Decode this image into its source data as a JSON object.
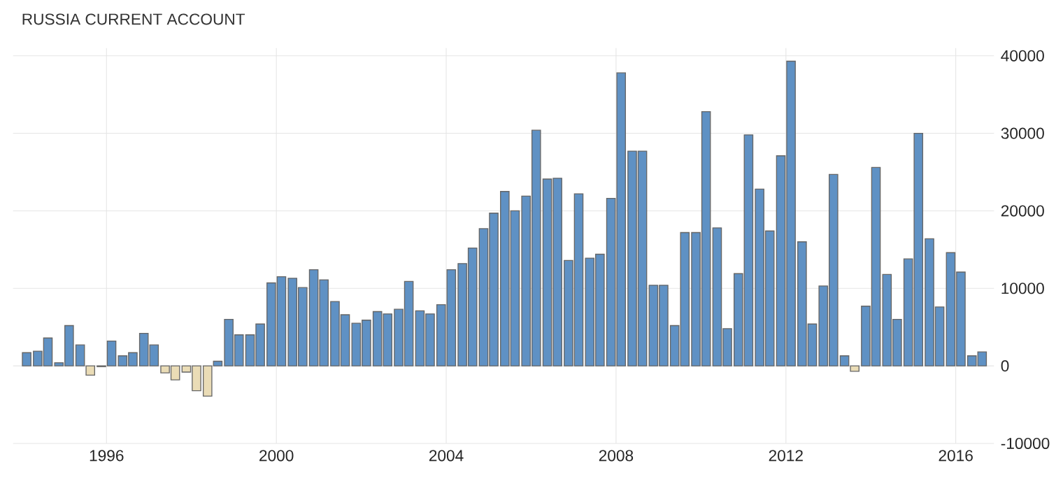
{
  "chart_data": {
    "type": "bar",
    "title": "RUSSIA CURRENT ACCOUNT",
    "x": [
      1994.12,
      1994.38,
      1994.62,
      1994.88,
      1995.12,
      1995.38,
      1995.62,
      1995.88,
      1996.12,
      1996.38,
      1996.62,
      1996.88,
      1997.12,
      1997.38,
      1997.62,
      1997.88,
      1998.12,
      1998.38,
      1998.62,
      1998.88,
      1999.12,
      1999.38,
      1999.62,
      1999.88,
      2000.12,
      2000.38,
      2000.62,
      2000.88,
      2001.12,
      2001.38,
      2001.62,
      2001.88,
      2002.12,
      2002.38,
      2002.62,
      2002.88,
      2003.12,
      2003.38,
      2003.62,
      2003.88,
      2004.12,
      2004.38,
      2004.62,
      2004.88,
      2005.12,
      2005.38,
      2005.62,
      2005.88,
      2006.12,
      2006.38,
      2006.62,
      2006.88,
      2007.12,
      2007.38,
      2007.62,
      2007.88,
      2008.12,
      2008.38,
      2008.62,
      2008.88,
      2009.12,
      2009.38,
      2009.62,
      2009.88,
      2010.12,
      2010.38,
      2010.62,
      2010.88,
      2011.12,
      2011.38,
      2011.62,
      2011.88,
      2012.12,
      2012.38,
      2012.62,
      2012.88,
      2013.12,
      2013.38,
      2013.62,
      2013.88,
      2014.12,
      2014.38,
      2014.62,
      2014.88,
      2015.12,
      2015.38,
      2015.62,
      2015.88,
      2016.12,
      2016.38,
      2016.62
    ],
    "values": [
      1700,
      1900,
      3600,
      400,
      5200,
      2700,
      -1200,
      -100,
      3200,
      1300,
      1700,
      4200,
      2700,
      -900,
      -1800,
      -800,
      -3200,
      -3900,
      600,
      6000,
      4000,
      4000,
      5400,
      10700,
      11500,
      11300,
      10100,
      12400,
      11100,
      8300,
      6600,
      5500,
      5900,
      7000,
      6700,
      7300,
      10900,
      7100,
      6700,
      7900,
      12400,
      13200,
      15200,
      17700,
      19700,
      22500,
      20000,
      21900,
      30400,
      24100,
      24200,
      13600,
      22200,
      13900,
      14400,
      21600,
      37800,
      27700,
      27700,
      10400,
      10400,
      5200,
      17200,
      17200,
      32800,
      17800,
      4800,
      11900,
      29800,
      22800,
      17400,
      27100,
      39300,
      16000,
      5400,
      10300,
      24700,
      1300,
      -700,
      7700,
      25600,
      11800,
      6000,
      13800,
      30000,
      16400,
      7600,
      14600,
      12100,
      1300,
      1800
    ],
    "colors": [
      "#5f91c4",
      "#5f91c4",
      "#5f91c4",
      "#5f91c4",
      "#5f91c4",
      "#5f91c4",
      "#eadcb6",
      "#eadcb6",
      "#5f91c4",
      "#5f91c4",
      "#5f91c4",
      "#5f91c4",
      "#5f91c4",
      "#eadcb6",
      "#eadcb6",
      "#eadcb6",
      "#eadcb6",
      "#eadcb6",
      "#5f91c4",
      "#5f91c4",
      "#5f91c4",
      "#5f91c4",
      "#5f91c4",
      "#5f91c4",
      "#5f91c4",
      "#5f91c4",
      "#5f91c4",
      "#5f91c4",
      "#5f91c4",
      "#5f91c4",
      "#5f91c4",
      "#5f91c4",
      "#5f91c4",
      "#5f91c4",
      "#5f91c4",
      "#5f91c4",
      "#5f91c4",
      "#5f91c4",
      "#5f91c4",
      "#5f91c4",
      "#5f91c4",
      "#5f91c4",
      "#5f91c4",
      "#5f91c4",
      "#5f91c4",
      "#5f91c4",
      "#5f91c4",
      "#5f91c4",
      "#5f91c4",
      "#5f91c4",
      "#5f91c4",
      "#5f91c4",
      "#5f91c4",
      "#5f91c4",
      "#5f91c4",
      "#5f91c4",
      "#5f91c4",
      "#5f91c4",
      "#5f91c4",
      "#5f91c4",
      "#5f91c4",
      "#5f91c4",
      "#5f91c4",
      "#5f91c4",
      "#5f91c4",
      "#5f91c4",
      "#5f91c4",
      "#5f91c4",
      "#5f91c4",
      "#5f91c4",
      "#5f91c4",
      "#5f91c4",
      "#5f91c4",
      "#5f91c4",
      "#5f91c4",
      "#5f91c4",
      "#5f91c4",
      "#5f91c4",
      "#eadcb6",
      "#5f91c4",
      "#5f91c4",
      "#5f91c4",
      "#5f91c4",
      "#5f91c4",
      "#5f91c4",
      "#5f91c4",
      "#5f91c4",
      "#5f91c4",
      "#5f91c4",
      "#5f91c4",
      "#5f91c4"
    ],
    "xlim": [
      1993.8,
      2016.9
    ],
    "xticks": [
      1996,
      2000,
      2004,
      2008,
      2012,
      2016
    ],
    "ylim": [
      -10000,
      41000
    ],
    "yticks": [
      -10000,
      0,
      10000,
      20000,
      30000,
      40000
    ],
    "grid": true
  }
}
